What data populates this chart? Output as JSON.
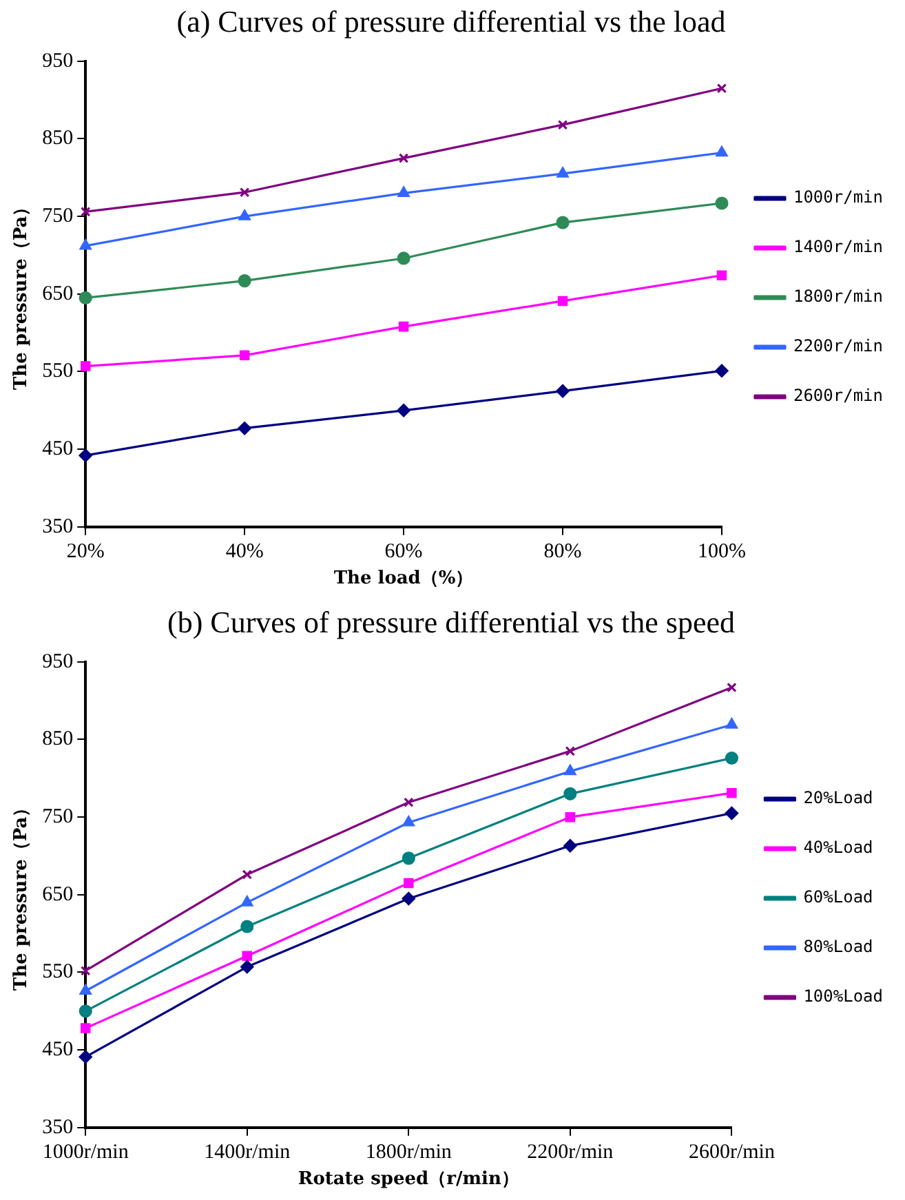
{
  "chart_data": [
    {
      "type": "line",
      "title": "(a) Curves of pressure differential vs the load",
      "xlabel": "The load（%）",
      "ylabel": "The pressure（Pa）",
      "categories": [
        "20%",
        "40%",
        "60%",
        "80%",
        "100%"
      ],
      "ylim": [
        350,
        950
      ],
      "yticks": [
        350,
        450,
        550,
        650,
        750,
        850,
        950
      ],
      "grid": false,
      "legend": "right",
      "line_style": "solid",
      "series": [
        {
          "name": "1000r/min",
          "color": "#000080",
          "marker": "diamond",
          "values": [
            442,
            477,
            500,
            525,
            551
          ]
        },
        {
          "name": "1400r/min",
          "color": "#ff00ff",
          "marker": "square",
          "values": [
            557,
            571,
            608,
            641,
            674
          ]
        },
        {
          "name": "1800r/min",
          "color": "#2e8b57",
          "marker": "circle",
          "values": [
            645,
            667,
            696,
            742,
            767
          ]
        },
        {
          "name": "2200r/min",
          "color": "#3366ff",
          "marker": "triangle",
          "values": [
            712,
            750,
            780,
            805,
            832
          ]
        },
        {
          "name": "2600r/min",
          "color": "#800080",
          "marker": "cross",
          "values": [
            756,
            781,
            825,
            868,
            915
          ]
        }
      ]
    },
    {
      "type": "line",
      "title": "(b) Curves of pressure differential vs the speed",
      "xlabel": "Rotate speed（r/min）",
      "ylabel": "The pressure（Pa）",
      "categories": [
        "1000r/min",
        "1400r/min",
        "1800r/min",
        "2200r/min",
        "2600r/min"
      ],
      "ylim": [
        350,
        950
      ],
      "yticks": [
        350,
        450,
        550,
        650,
        750,
        850,
        950
      ],
      "grid": false,
      "legend": "right",
      "line_style": "solid",
      "series": [
        {
          "name": "20%Load",
          "color": "#000080",
          "marker": "diamond",
          "values": [
            441,
            557,
            645,
            713,
            755
          ]
        },
        {
          "name": "40%Load",
          "color": "#ff00ff",
          "marker": "square",
          "values": [
            478,
            571,
            665,
            750,
            781
          ]
        },
        {
          "name": "60%Load",
          "color": "#008080",
          "marker": "circle",
          "values": [
            500,
            609,
            697,
            780,
            826
          ]
        },
        {
          "name": "80%Load",
          "color": "#3366ff",
          "marker": "triangle",
          "values": [
            526,
            640,
            743,
            809,
            869
          ]
        },
        {
          "name": "100%Load",
          "color": "#800080",
          "marker": "cross",
          "values": [
            552,
            676,
            769,
            835,
            917
          ]
        }
      ]
    }
  ]
}
